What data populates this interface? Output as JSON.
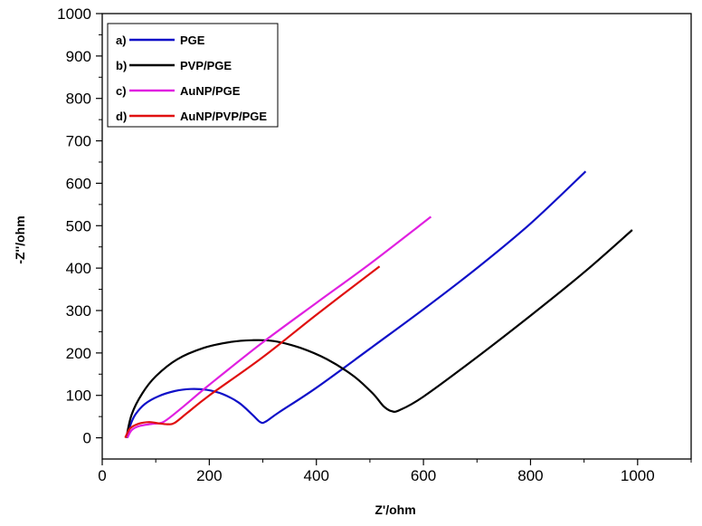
{
  "chart_data": {
    "type": "line",
    "xlabel": "Z'/ohm",
    "ylabel": "-Z''/ohm",
    "xlim": [
      0,
      1100
    ],
    "ylim": [
      -50,
      1000
    ],
    "xticks": [
      0,
      200,
      400,
      600,
      800,
      1000
    ],
    "yticks": [
      0,
      100,
      200,
      300,
      400,
      500,
      600,
      700,
      800,
      900,
      1000
    ],
    "grid": false,
    "legend_position": "top-left",
    "series": [
      {
        "name": "PGE",
        "tag": "a)",
        "color": "#1010c8",
        "points": [
          [
            47,
            0
          ],
          [
            52,
            28
          ],
          [
            62,
            55
          ],
          [
            80,
            80
          ],
          [
            105,
            98
          ],
          [
            135,
            110
          ],
          [
            165,
            115
          ],
          [
            195,
            113
          ],
          [
            225,
            103
          ],
          [
            255,
            83
          ],
          [
            280,
            55
          ],
          [
            295,
            37
          ],
          [
            305,
            38
          ],
          [
            330,
            60
          ],
          [
            400,
            118
          ],
          [
            500,
            210
          ],
          [
            600,
            303
          ],
          [
            700,
            400
          ],
          [
            800,
            505
          ],
          [
            903,
            628
          ]
        ]
      },
      {
        "name": "PVP/PGE",
        "tag": "b)",
        "color": "#000000",
        "points": [
          [
            45,
            0
          ],
          [
            55,
            55
          ],
          [
            75,
            105
          ],
          [
            100,
            145
          ],
          [
            140,
            185
          ],
          [
            190,
            212
          ],
          [
            240,
            226
          ],
          [
            280,
            230
          ],
          [
            320,
            228
          ],
          [
            370,
            212
          ],
          [
            420,
            185
          ],
          [
            470,
            145
          ],
          [
            505,
            105
          ],
          [
            525,
            75
          ],
          [
            540,
            63
          ],
          [
            555,
            65
          ],
          [
            600,
            97
          ],
          [
            700,
            190
          ],
          [
            800,
            288
          ],
          [
            900,
            390
          ],
          [
            990,
            490
          ]
        ]
      },
      {
        "name": "AuNP/PGE",
        "tag": "c)",
        "color": "#e020e0",
        "points": [
          [
            47,
            0
          ],
          [
            55,
            18
          ],
          [
            70,
            28
          ],
          [
            95,
            33
          ],
          [
            115,
            38
          ],
          [
            150,
            72
          ],
          [
            200,
            125
          ],
          [
            300,
            225
          ],
          [
            400,
            318
          ],
          [
            500,
            410
          ],
          [
            614,
            521
          ]
        ]
      },
      {
        "name": "AuNP/PVP/PGE",
        "tag": "d)",
        "color": "#e01010",
        "points": [
          [
            43,
            0
          ],
          [
            52,
            22
          ],
          [
            68,
            33
          ],
          [
            88,
            37
          ],
          [
            105,
            34
          ],
          [
            122,
            32
          ],
          [
            135,
            35
          ],
          [
            160,
            60
          ],
          [
            200,
            100
          ],
          [
            300,
            190
          ],
          [
            400,
            290
          ],
          [
            518,
            404
          ]
        ]
      }
    ]
  }
}
